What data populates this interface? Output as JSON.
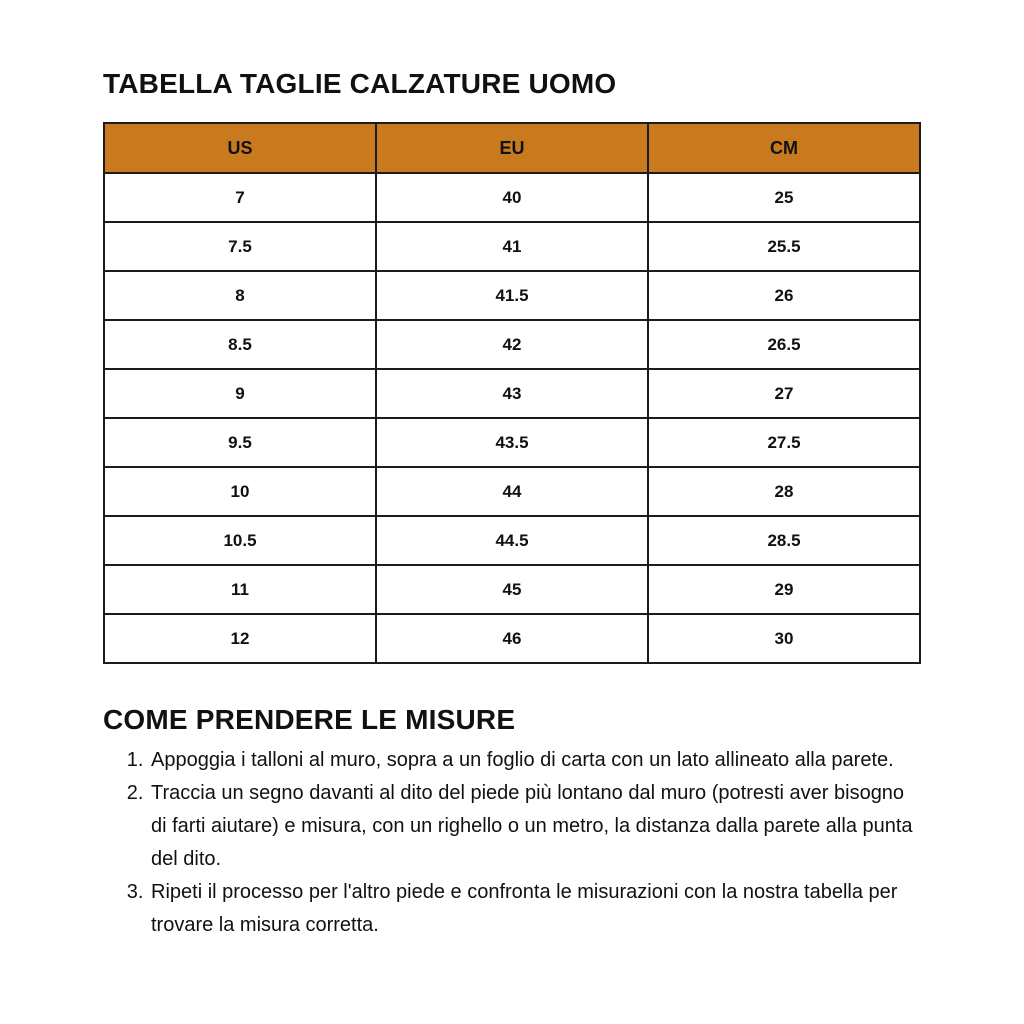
{
  "page": {
    "table_title": "TABELLA TAGLIE CALZATURE UOMO",
    "instructions_title": "COME PRENDERE LE MISURE"
  },
  "size_table": {
    "header_bg_color": "#C97A1E",
    "border_color": "#1B1B1B",
    "headers": [
      "US",
      "EU",
      "CM"
    ],
    "rows": [
      [
        "7",
        "40",
        "25"
      ],
      [
        "7.5",
        "41",
        "25.5"
      ],
      [
        "8",
        "41.5",
        "26"
      ],
      [
        "8.5",
        "42",
        "26.5"
      ],
      [
        "9",
        "43",
        "27"
      ],
      [
        "9.5",
        "43.5",
        "27.5"
      ],
      [
        "10",
        "44",
        "28"
      ],
      [
        "10.5",
        "44.5",
        "28.5"
      ],
      [
        "11",
        "45",
        "29"
      ],
      [
        "12",
        "46",
        "30"
      ]
    ]
  },
  "instructions": {
    "steps": [
      "Appoggia i talloni al muro, sopra a un foglio di carta con un lato allineato alla parete.",
      "Traccia un segno davanti al dito del piede più lontano dal muro (potresti aver bisogno di farti aiutare) e misura, con un righello o un metro, la distanza dalla parete alla punta del dito.",
      "Ripeti il processo per l'altro piede e confronta le misurazioni con la nostra tabella per trovare la misura corretta."
    ]
  }
}
